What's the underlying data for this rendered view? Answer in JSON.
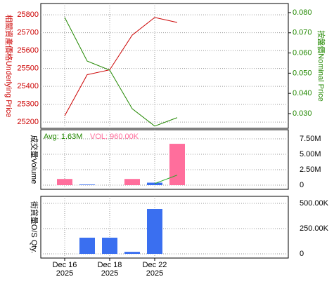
{
  "chart_data": [
    {
      "type": "line",
      "y_label": "相關資產價格Underlying Price",
      "y2_label": "按盤價Nominal Price",
      "ylim": [
        25165,
        25863
      ],
      "yticks": [
        25200,
        25300,
        25400,
        25500,
        25600,
        25700,
        25800
      ],
      "y2lim": [
        0.0227,
        0.0845
      ],
      "y2ticks": [
        {
          "value": 0.03,
          "label": "0.030"
        },
        {
          "value": 0.04,
          "label": "0.040"
        },
        {
          "value": 0.05,
          "label": "0.050"
        },
        {
          "value": 0.06,
          "label": "0.060"
        },
        {
          "value": 0.07,
          "label": "0.070"
        },
        {
          "value": 0.08,
          "label": "0.080"
        }
      ],
      "grid": true,
      "series": [
        {
          "color": "#cc0000",
          "values": [
            25235,
            25465,
            25492,
            25686,
            25785,
            25757
          ]
        },
        {
          "color": "#228800",
          "axis": "y2",
          "values": [
            0.0776,
            0.056,
            0.0515,
            0.0324,
            0.0238,
            0.028
          ]
        }
      ]
    },
    {
      "type": "bar",
      "y_label": "成交量Volume",
      "legend": [
        "Avg: 1.63M",
        "VOL: 960.00K"
      ],
      "ylim": [
        -680000,
        8980000
      ],
      "yticks": [
        0,
        {
          "value": 2500000,
          "label": "2.50M"
        },
        {
          "value": 5000000,
          "label": "5.00M"
        },
        {
          "value": 7500000,
          "label": "7.50M"
        }
      ],
      "grid": true,
      "series": [
        {
          "color": "#ff6e9c",
          "values": [
            1000000,
            null,
            null,
            1000000,
            null,
            6700000
          ]
        },
        {
          "color": "#3a6ff0",
          "values": [
            null,
            100000,
            null,
            null,
            400000,
            null
          ]
        },
        {
          "color": "#22aa22",
          "line": true,
          "values": [
            null,
            null,
            null,
            null,
            250000,
            1630000
          ]
        }
      ]
    },
    {
      "type": "bar",
      "y_label": "街貨量O/S Qty.",
      "ylim": [
        -41700,
        569000
      ],
      "yticks": [
        0,
        {
          "value": 250000,
          "label": "250.00K"
        },
        {
          "value": 500000,
          "label": "500.00K"
        }
      ],
      "grid": true,
      "categories": [
        "Dec 16",
        null,
        "Dec 18",
        null,
        "Dec 22",
        null
      ],
      "category_years": [
        "2025",
        null,
        "2025",
        null,
        "2025",
        null
      ],
      "series": [
        {
          "color": "#3a6ff0",
          "values": [
            null,
            160000,
            160000,
            20000,
            444000,
            null
          ]
        }
      ]
    }
  ]
}
